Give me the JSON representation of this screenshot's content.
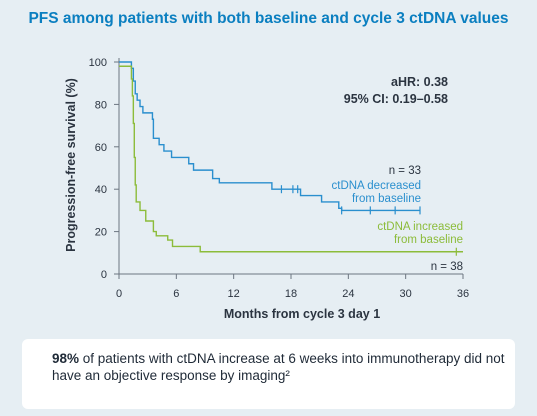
{
  "title": "PFS among patients with both baseline and cycle 3 ctDNA values",
  "note": {
    "highlight": "98%",
    "text": " of patients with ctDNA increase at 6 weeks into immunotherapy did not have an objective response by imaging²"
  },
  "colors": {
    "decreased": "#2a8fce",
    "increased": "#8cbc3a",
    "title": "#0b7fc0",
    "text": "#2b3440",
    "background": "#e6eef3",
    "axis": "#6c7580"
  },
  "chart_data": {
    "type": "line",
    "step": true,
    "xlabel": "Months from cycle 3 day 1",
    "ylabel": "Progression-free survival (%)",
    "xlim": [
      0,
      36
    ],
    "ylim": [
      0,
      100
    ],
    "x_ticks": [
      0,
      6,
      12,
      18,
      24,
      30,
      36
    ],
    "y_ticks": [
      0,
      20,
      40,
      60,
      80,
      100
    ],
    "grid": false,
    "annotations": {
      "ahr": "aHR: 0.38",
      "ci": "95% CI: 0.19–0.58"
    },
    "series": [
      {
        "name": "ctDNA decreased from baseline",
        "label_lines": [
          "ctDNA decreased",
          "from baseline"
        ],
        "n_label": "n = 33",
        "color": "#2a8fce",
        "points": [
          [
            0,
            100
          ],
          [
            1.3,
            100
          ],
          [
            1.3,
            97
          ],
          [
            1.5,
            91
          ],
          [
            1.7,
            85
          ],
          [
            1.9,
            82
          ],
          [
            2.2,
            79
          ],
          [
            2.5,
            76
          ],
          [
            3.5,
            73
          ],
          [
            3.6,
            64
          ],
          [
            4.2,
            61
          ],
          [
            4.7,
            58
          ],
          [
            5.5,
            55
          ],
          [
            7.3,
            52
          ],
          [
            7.8,
            49
          ],
          [
            9.8,
            45
          ],
          [
            10.5,
            43
          ],
          [
            16.0,
            40
          ],
          [
            17.5,
            40
          ],
          [
            19.0,
            37
          ],
          [
            20.8,
            37
          ],
          [
            21.2,
            34
          ],
          [
            23.0,
            31
          ],
          [
            23.3,
            30
          ],
          [
            31.5,
            30
          ]
        ],
        "censored": [
          [
            17.0,
            40
          ],
          [
            18.2,
            40
          ],
          [
            18.7,
            40
          ],
          [
            23.3,
            30
          ],
          [
            26.3,
            30
          ],
          [
            28.9,
            30
          ],
          [
            31.5,
            30
          ]
        ]
      },
      {
        "name": "ctDNA increased from baseline",
        "label_lines": [
          "ctDNA increased",
          "from baseline"
        ],
        "n_label": "n = 38",
        "color": "#8cbc3a",
        "points": [
          [
            0,
            98
          ],
          [
            1.2,
            98
          ],
          [
            1.3,
            92
          ],
          [
            1.4,
            84
          ],
          [
            1.5,
            71
          ],
          [
            1.6,
            55
          ],
          [
            1.7,
            42
          ],
          [
            1.8,
            34
          ],
          [
            2.2,
            30
          ],
          [
            2.8,
            25
          ],
          [
            3.6,
            20
          ],
          [
            3.9,
            18
          ],
          [
            5.1,
            16
          ],
          [
            5.6,
            13
          ],
          [
            8.5,
            10.5
          ],
          [
            36,
            10.5
          ]
        ],
        "censored": [
          [
            35.3,
            10.5
          ]
        ]
      }
    ]
  }
}
